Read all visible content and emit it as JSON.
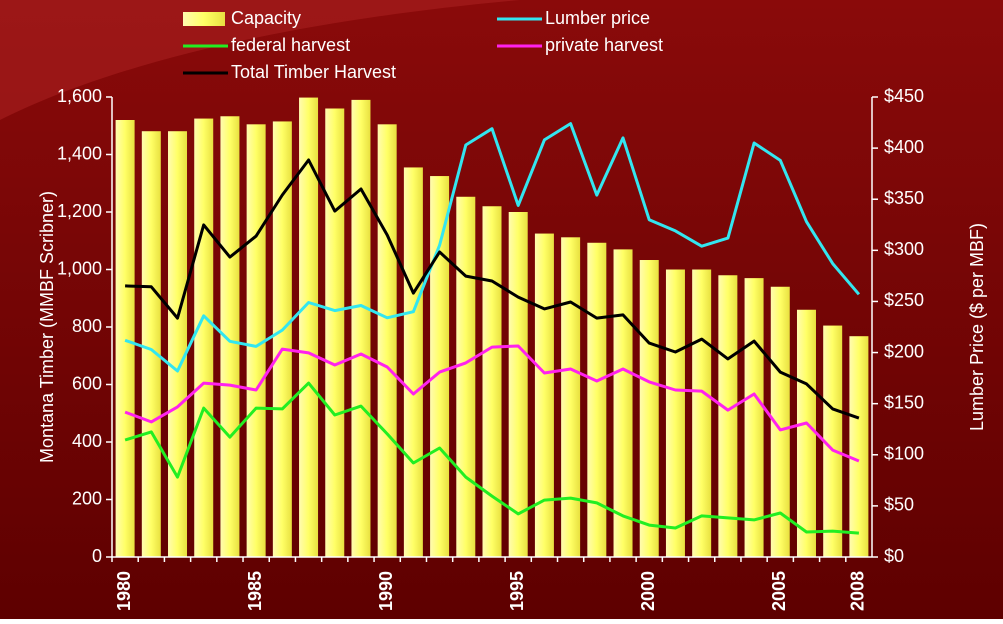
{
  "chart_data": {
    "type": "bar",
    "categories": [
      "1980",
      null,
      null,
      null,
      null,
      "1985",
      null,
      null,
      null,
      null,
      "1990",
      null,
      null,
      null,
      null,
      "1995",
      null,
      null,
      null,
      null,
      "2000",
      null,
      null,
      null,
      null,
      "2005",
      null,
      null,
      "2008"
    ],
    "series": [
      {
        "name": "Capacity",
        "type": "bar",
        "color": "#ffff66",
        "values": [
          1520,
          1481,
          1481,
          1525,
          1533,
          1505,
          1515,
          1598,
          1560,
          1590,
          1505,
          1355,
          1325,
          1253,
          1220,
          1200,
          1125,
          1112,
          1093,
          1070,
          1033,
          1000,
          1000,
          980,
          970,
          940,
          860,
          805,
          768
        ]
      },
      {
        "name": "Lumber price",
        "type": "line",
        "axis": "y2",
        "color": "#33e6f0",
        "values": [
          212,
          203,
          182,
          236,
          211,
          206,
          222,
          249,
          241,
          246,
          234,
          240,
          305,
          403,
          419,
          344,
          408,
          424,
          354,
          410,
          330,
          319,
          304,
          312,
          405,
          388,
          328,
          287,
          257
        ]
      },
      {
        "name": "federal harvest",
        "type": "line",
        "color": "#22ee22",
        "values": [
          407,
          435,
          278,
          518,
          417,
          518,
          515,
          605,
          494,
          525,
          428,
          327,
          379,
          278,
          212,
          150,
          198,
          205,
          188,
          143,
          111,
          101,
          143,
          136,
          129,
          153,
          87,
          90,
          83
        ]
      },
      {
        "name": "private harvest",
        "type": "line",
        "color": "#ff22ee",
        "values": [
          504,
          470,
          522,
          605,
          598,
          581,
          723,
          710,
          668,
          706,
          661,
          567,
          643,
          675,
          730,
          734,
          640,
          654,
          612,
          654,
          609,
          581,
          577,
          511,
          567,
          442,
          466,
          372,
          334
        ]
      },
      {
        "name": "Total Timber Harvest",
        "type": "line",
        "color": "#000000",
        "values": [
          943,
          940,
          831,
          1155,
          1043,
          1116,
          1259,
          1381,
          1203,
          1280,
          1120,
          918,
          1061,
          977,
          960,
          904,
          863,
          887,
          831,
          842,
          744,
          713,
          758,
          689,
          751,
          643,
          602,
          515,
          483
        ]
      }
    ],
    "ylabel": "Montana Timber (MMBF Scribner)",
    "y2label": "Lumber Price ($ per MBF)",
    "ylim": [
      0,
      1600
    ],
    "yticks": [
      0,
      200,
      400,
      600,
      800,
      {
        "value": 1000,
        "label": "1,000"
      },
      {
        "value": 1200,
        "label": "1,200"
      },
      {
        "value": 1400,
        "label": "1,400"
      },
      {
        "value": 1600,
        "label": "1,600"
      }
    ],
    "y2lim": [
      0,
      450
    ],
    "y2ticks": [
      {
        "value": 0,
        "label": "$0"
      },
      {
        "value": 50,
        "label": "$50"
      },
      {
        "value": 100,
        "label": "$100"
      },
      {
        "value": 150,
        "label": "$150"
      },
      {
        "value": 200,
        "label": "$200"
      },
      {
        "value": 250,
        "label": "$250"
      },
      {
        "value": 300,
        "label": "$300"
      },
      {
        "value": 350,
        "label": "$350"
      },
      {
        "value": 400,
        "label": "$400"
      },
      {
        "value": 450,
        "label": "$450"
      }
    ],
    "grid": false
  }
}
